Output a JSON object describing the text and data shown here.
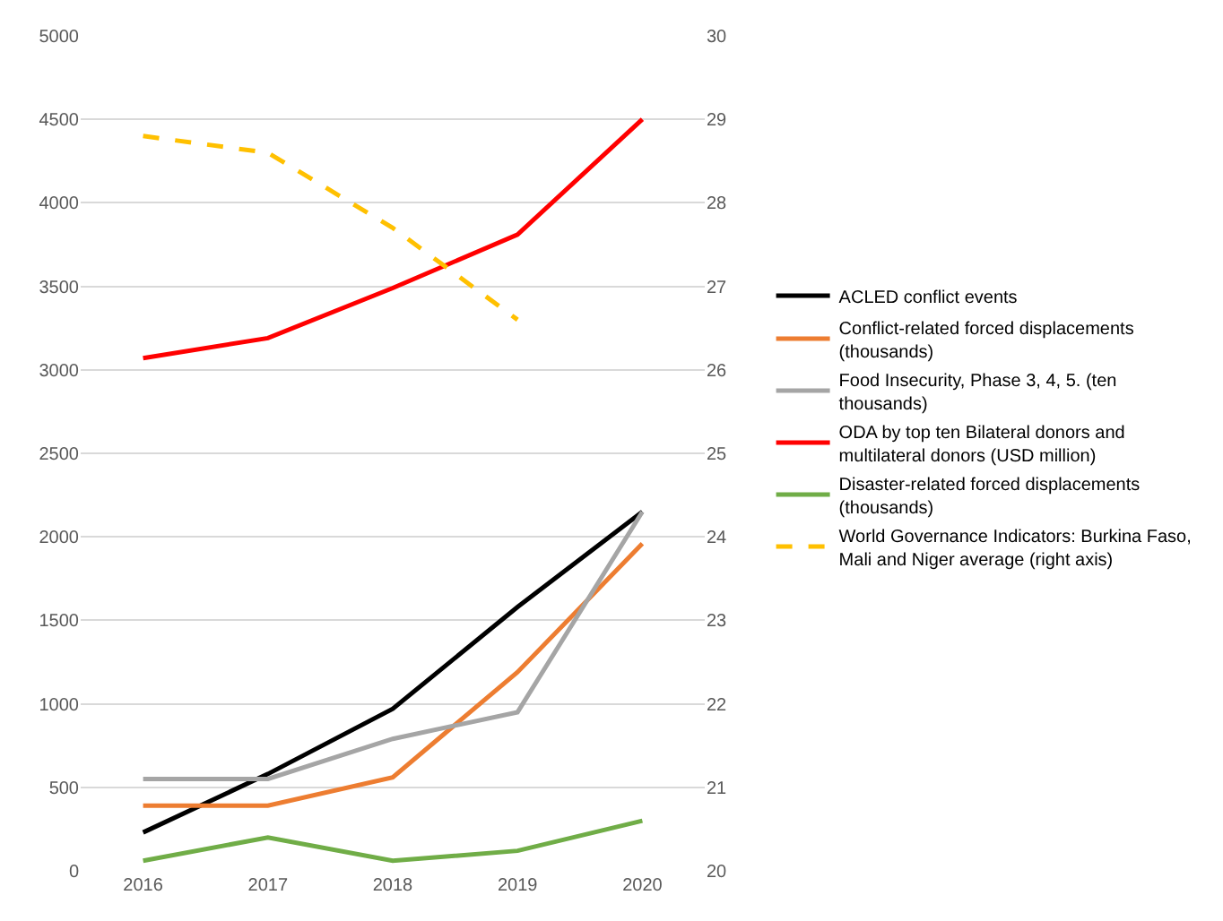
{
  "chart_data": {
    "type": "line",
    "categories": [
      "2016",
      "2017",
      "2018",
      "2019",
      "2020"
    ],
    "series": [
      {
        "name": "ACLED conflict events",
        "color": "#000000",
        "values": [
          230,
          580,
          970,
          1580,
          2150
        ]
      },
      {
        "name": "Conflict-related forced displacements (thousands)",
        "color": "#ed7d31",
        "values": [
          390,
          390,
          560,
          1190,
          1960
        ]
      },
      {
        "name": "Food Insecurity, Phase 3, 4, 5. (ten thousands)",
        "color": "#a5a5a5",
        "values": [
          550,
          550,
          790,
          950,
          2150
        ]
      },
      {
        "name": "ODA by top ten Bilateral donors and multilateral donors (USD million)",
        "color": "#ff0000",
        "values": [
          3070,
          3190,
          3490,
          3810,
          4500
        ]
      },
      {
        "name": "Disaster-related forced displacements (thousands)",
        "color": "#70ad47",
        "values": [
          60,
          200,
          60,
          120,
          300
        ]
      },
      {
        "name": "World Governance Indicators: Burkina Faso, Mali and Niger average (right axis)",
        "color": "#ffc000",
        "axis": "y2",
        "line_style": "dashed",
        "values": [
          28.8,
          28.6,
          27.7,
          26.6,
          null
        ]
      }
    ],
    "ylim": [
      0,
      5000
    ],
    "yticks": [
      0,
      500,
      1000,
      1500,
      2000,
      2500,
      3000,
      3500,
      4000,
      4500,
      5000
    ],
    "y2lim": [
      20,
      30
    ],
    "y2ticks": [
      20,
      21,
      22,
      23,
      24,
      25,
      26,
      27,
      28,
      29,
      30
    ],
    "grid": "y",
    "legend": "right",
    "line_style": "solid",
    "marker": "none"
  }
}
